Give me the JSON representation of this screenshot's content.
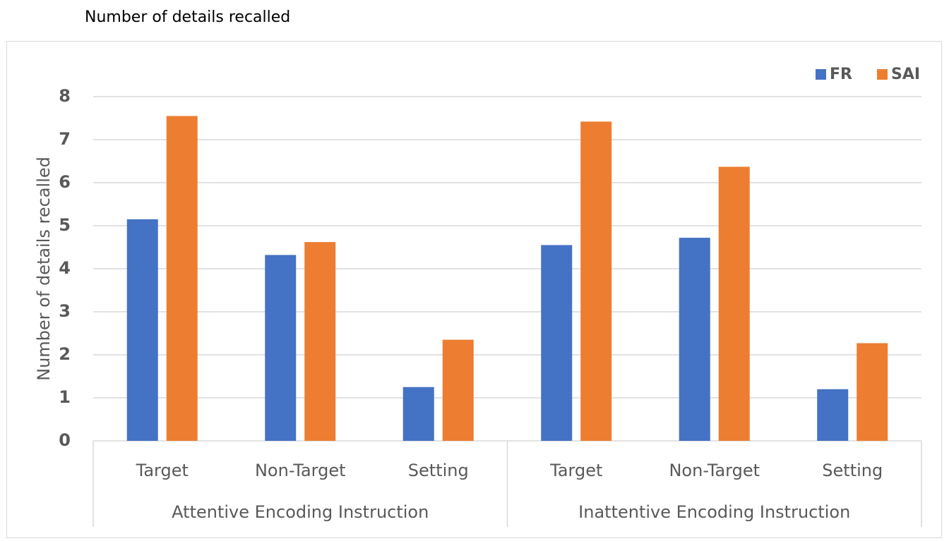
{
  "caption": "Number of details recalled",
  "chart_data": {
    "type": "bar",
    "title": "",
    "xlabel": "",
    "ylabel": "Number of details recalled",
    "ylim": [
      0,
      8
    ],
    "yticks": [
      "0",
      "1",
      "2",
      "3",
      "4",
      "5",
      "6",
      "7",
      "8"
    ],
    "grid": true,
    "legend_position": "top-right",
    "groups": [
      {
        "label": "Attentive Encoding Instruction",
        "categories": [
          "Target",
          "Non-Target",
          "Setting"
        ]
      },
      {
        "label": "Inattentive Encoding Instruction",
        "categories": [
          "Target",
          "Non-Target",
          "Setting"
        ]
      }
    ],
    "categories": [
      "Target",
      "Non-Target",
      "Setting",
      "Target",
      "Non-Target",
      "Setting"
    ],
    "series": [
      {
        "name": "FR",
        "color": "#4472c4",
        "values": [
          5.15,
          4.32,
          1.25,
          4.55,
          4.72,
          1.2
        ]
      },
      {
        "name": "SAI",
        "color": "#ed7d31",
        "values": [
          7.55,
          4.62,
          2.35,
          7.42,
          6.37,
          2.27
        ]
      }
    ]
  },
  "colors": {
    "grid": "#d9d9d9",
    "text": "#595959"
  }
}
